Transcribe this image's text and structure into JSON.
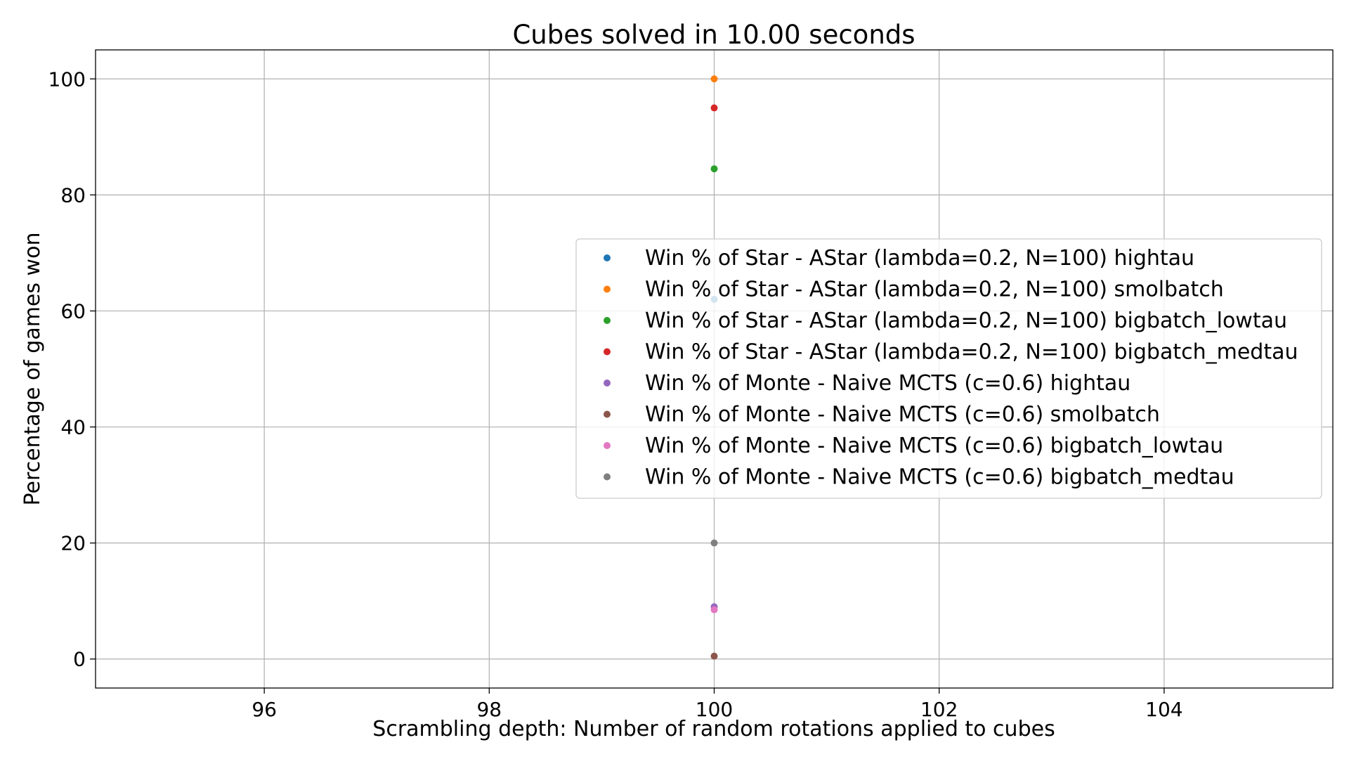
{
  "chart_data": {
    "type": "scatter",
    "title": "Cubes solved in 10.00 seconds",
    "xlabel": "Scrambling depth: Number of random rotations applied to cubes",
    "ylabel": "Percentage of games won",
    "xlim": [
      94.5,
      105.5
    ],
    "ylim": [
      -5,
      105
    ],
    "xticks": [
      96,
      98,
      100,
      102,
      104
    ],
    "yticks": [
      0,
      20,
      40,
      60,
      80,
      100
    ],
    "grid": true,
    "legend_position": "center-right",
    "series": [
      {
        "name": "Win % of Star - AStar (lambda=0.2, N=100) hightau",
        "color": "#1f77b4",
        "x": [
          100
        ],
        "y": [
          62
        ]
      },
      {
        "name": "Win % of Star - AStar (lambda=0.2, N=100) smolbatch",
        "color": "#ff7f0e",
        "x": [
          100
        ],
        "y": [
          100
        ]
      },
      {
        "name": "Win % of Star - AStar (lambda=0.2, N=100) bigbatch_lowtau",
        "color": "#2ca02c",
        "x": [
          100
        ],
        "y": [
          84.5
        ]
      },
      {
        "name": "Win % of Star - AStar (lambda=0.2, N=100) bigbatch_medtau",
        "color": "#d62728",
        "x": [
          100
        ],
        "y": [
          95
        ]
      },
      {
        "name": "Win % of Monte - Naive MCTS (c=0.6) hightau",
        "color": "#9467bd",
        "x": [
          100
        ],
        "y": [
          9
        ]
      },
      {
        "name": "Win % of Monte - Naive MCTS (c=0.6) smolbatch",
        "color": "#8c564b",
        "x": [
          100
        ],
        "y": [
          0.5
        ]
      },
      {
        "name": "Win % of Monte - Naive MCTS (c=0.6) bigbatch_lowtau",
        "color": "#e377c2",
        "x": [
          100
        ],
        "y": [
          8.5
        ]
      },
      {
        "name": "Win % of Monte - Naive MCTS (c=0.6) bigbatch_medtau",
        "color": "#7f7f7f",
        "x": [
          100
        ],
        "y": [
          20
        ]
      }
    ]
  }
}
